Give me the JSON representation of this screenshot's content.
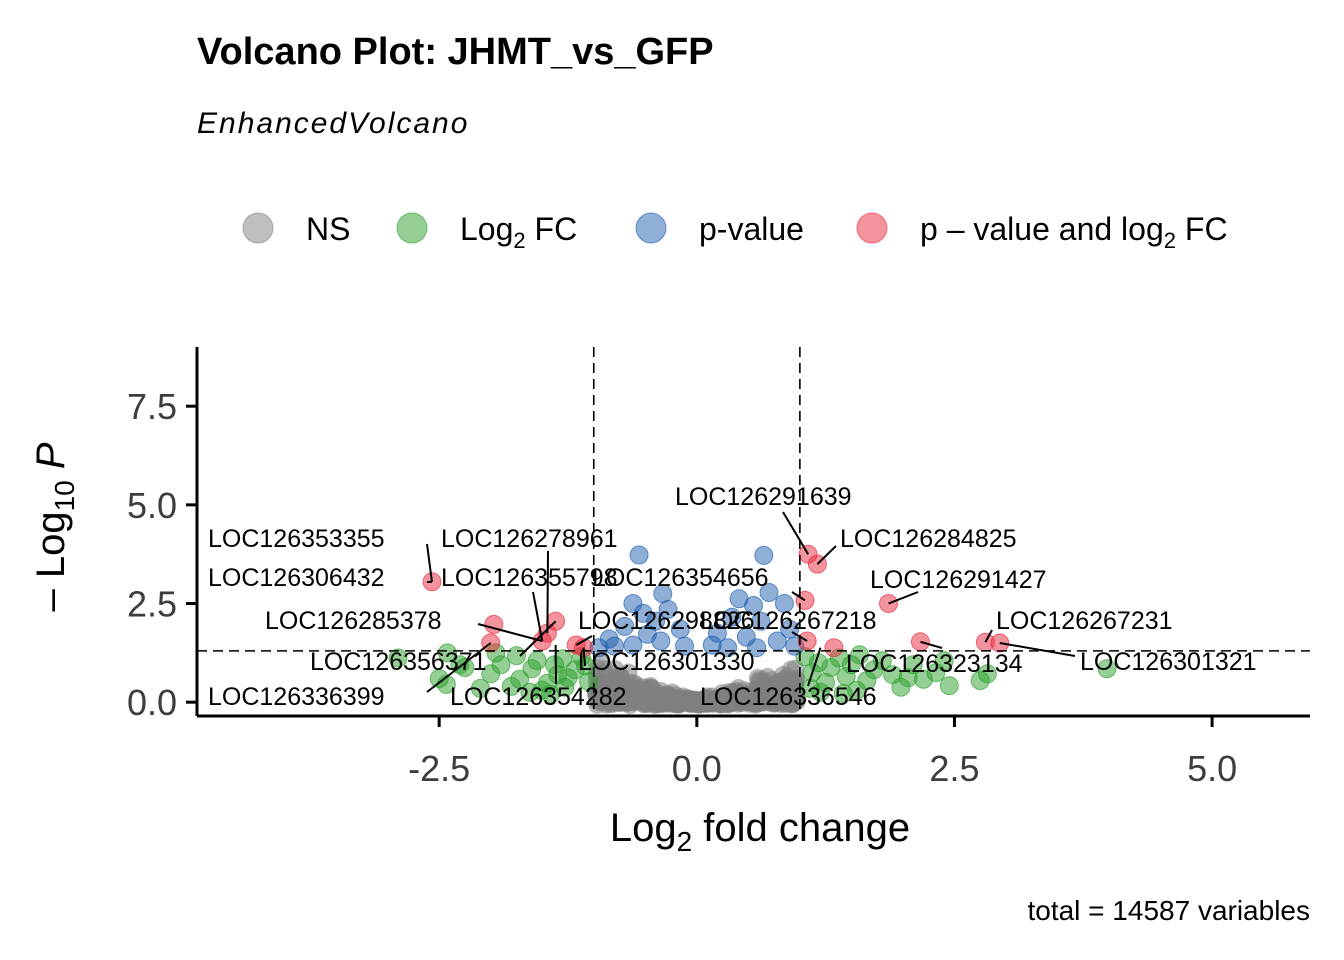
{
  "chart_data": {
    "type": "scatter",
    "title": "Volcano Plot: JHMT_vs_GFP",
    "subtitle": "EnhancedVolcano",
    "xlabel": {
      "main": "Log",
      "sub": "2",
      "rest": " fold change"
    },
    "ylabel": {
      "pre": "– Log",
      "sub": "10",
      "italic": " P"
    },
    "xlim": [
      -4.85,
      5.95
    ],
    "ylim": [
      -0.35,
      9.0
    ],
    "x_ticks": [
      -2.5,
      0.0,
      2.5,
      5.0
    ],
    "x_tick_labels": [
      "-2.5",
      "0.0",
      "2.5",
      "5.0"
    ],
    "y_ticks": [
      0.0,
      2.5,
      5.0,
      7.5
    ],
    "y_tick_labels": [
      "0.0",
      "2.5",
      "5.0",
      "7.5"
    ],
    "fc_cutoff": 1.0,
    "p_cutoff_log10": 1.3,
    "caption": "total = 14587 variables",
    "colors": {
      "NS": "#808080",
      "Log2FC": "#2ca02c",
      "pvalue": "#1f5fb0",
      "both": "#e8283c"
    },
    "legend": [
      {
        "key": "NS",
        "label": "NS",
        "sub": "",
        "tail": "",
        "color": "#808080"
      },
      {
        "key": "Log2FC",
        "label": "Log",
        "sub": "2",
        "tail": " FC",
        "color": "#2ca02c"
      },
      {
        "key": "pvalue",
        "label": "p-value",
        "sub": "",
        "tail": "",
        "color": "#1f5fb0"
      },
      {
        "key": "both",
        "label": "p – value and log",
        "sub": "2",
        "tail": " FC",
        "color": "#e8283c"
      }
    ],
    "points": {
      "both": [
        [
          -2.57,
          3.05
        ],
        [
          -1.97,
          1.97
        ],
        [
          -2.0,
          1.5
        ],
        [
          -1.5,
          1.55
        ],
        [
          -1.45,
          1.75
        ],
        [
          -1.37,
          2.05
        ],
        [
          -1.17,
          1.45
        ],
        [
          -1.1,
          1.38
        ],
        [
          1.08,
          3.75
        ],
        [
          1.17,
          3.5
        ],
        [
          1.05,
          2.58
        ],
        [
          1.07,
          1.55
        ],
        [
          1.33,
          1.38
        ],
        [
          1.86,
          2.5
        ],
        [
          2.17,
          1.53
        ],
        [
          2.8,
          1.52
        ],
        [
          2.94,
          1.5
        ]
      ],
      "pvalue": [
        [
          -0.56,
          3.73
        ],
        [
          -0.33,
          2.75
        ],
        [
          -0.52,
          2.25
        ],
        [
          -0.62,
          2.5
        ],
        [
          -0.4,
          2.05
        ],
        [
          -0.7,
          1.92
        ],
        [
          -0.85,
          1.6
        ],
        [
          -0.48,
          1.72
        ],
        [
          -0.28,
          2.35
        ],
        [
          -0.16,
          1.85
        ],
        [
          -0.62,
          1.45
        ],
        [
          -0.8,
          1.42
        ],
        [
          -0.35,
          1.55
        ],
        [
          -0.95,
          1.38
        ],
        [
          -0.12,
          1.42
        ],
        [
          0.65,
          3.72
        ],
        [
          0.41,
          2.62
        ],
        [
          0.55,
          2.45
        ],
        [
          0.7,
          2.78
        ],
        [
          0.85,
          2.5
        ],
        [
          0.34,
          2.15
        ],
        [
          0.62,
          2.05
        ],
        [
          0.9,
          1.85
        ],
        [
          0.2,
          1.75
        ],
        [
          0.48,
          1.65
        ],
        [
          0.78,
          1.55
        ],
        [
          0.15,
          1.45
        ],
        [
          0.95,
          1.42
        ],
        [
          0.3,
          1.38
        ],
        [
          0.58,
          1.38
        ]
      ],
      "Log2FC": [
        [
          -2.9,
          1.12
        ],
        [
          -2.43,
          0.45
        ],
        [
          -2.5,
          0.6
        ],
        [
          -2.42,
          1.25
        ],
        [
          -2.25,
          0.88
        ],
        [
          -2.0,
          0.72
        ],
        [
          -1.9,
          0.95
        ],
        [
          -1.75,
          1.18
        ],
        [
          -1.72,
          0.58
        ],
        [
          -1.6,
          0.85
        ],
        [
          -1.55,
          1.05
        ],
        [
          -1.45,
          0.48
        ],
        [
          -1.38,
          0.95
        ],
        [
          -1.35,
          0.7
        ],
        [
          -1.3,
          1.1
        ],
        [
          -1.25,
          0.62
        ],
        [
          -1.18,
          0.82
        ],
        [
          -1.12,
          1.15
        ],
        [
          -1.05,
          0.52
        ],
        [
          -1.5,
          0.3
        ],
        [
          -1.62,
          0.25
        ],
        [
          -1.8,
          0.4
        ],
        [
          -2.1,
          0.35
        ],
        [
          -1.95,
          1.25
        ],
        [
          -2.3,
          0.95
        ],
        [
          -1.08,
          0.92
        ],
        [
          -1.42,
          0.2
        ],
        [
          -1.28,
          0.38
        ],
        [
          1.05,
          1.15
        ],
        [
          1.12,
          0.75
        ],
        [
          1.18,
          1.0
        ],
        [
          1.25,
          0.5
        ],
        [
          1.3,
          0.88
        ],
        [
          1.38,
          1.12
        ],
        [
          1.45,
          0.65
        ],
        [
          1.5,
          0.95
        ],
        [
          1.58,
          1.2
        ],
        [
          1.65,
          0.55
        ],
        [
          1.72,
          0.82
        ],
        [
          1.8,
          1.05
        ],
        [
          1.9,
          0.7
        ],
        [
          2.05,
          0.62
        ],
        [
          2.2,
          0.58
        ],
        [
          2.32,
          0.75
        ],
        [
          2.4,
          1.05
        ],
        [
          2.45,
          0.42
        ],
        [
          2.75,
          0.55
        ],
        [
          2.82,
          0.72
        ],
        [
          3.98,
          0.85
        ],
        [
          1.55,
          0.3
        ],
        [
          1.42,
          0.22
        ],
        [
          1.98,
          0.38
        ],
        [
          2.1,
          0.95
        ],
        [
          1.1,
          0.35
        ],
        [
          1.2,
          0.25
        ]
      ]
    },
    "labels": [
      {
        "text": "LOC126353355",
        "px": -2.57,
        "py": 3.05
      },
      {
        "text": "LOC126278961",
        "px": -1.45,
        "py": 1.75
      },
      {
        "text": "LOC126306432",
        "px": -2.57,
        "py": 3.05
      },
      {
        "text": "LOC126355798",
        "px": -1.5,
        "py": 1.55
      },
      {
        "text": "LOC126354656",
        "px": 1.05,
        "py": 2.58
      },
      {
        "text": "LOC126285378",
        "px": -1.5,
        "py": 1.55
      },
      {
        "text": "LOC126298826",
        "px": -1.17,
        "py": 1.45
      },
      {
        "text": "LOC126267218",
        "px": 1.07,
        "py": 1.55
      },
      {
        "text": "LOC126356371",
        "px": -1.37,
        "py": 2.05
      },
      {
        "text": "LOC126301330",
        "px": -1.1,
        "py": 1.38
      },
      {
        "text": "LOC126336399",
        "px": -2.0,
        "py": 1.5
      },
      {
        "text": "LOC126354282",
        "px": -1.37,
        "py": 1.45
      },
      {
        "text": "LOC126336546",
        "px": 1.2,
        "py": 1.38
      },
      {
        "text": "LOC126291639",
        "px": 1.08,
        "py": 3.75
      },
      {
        "text": "LOC126284825",
        "px": 1.17,
        "py": 3.5
      },
      {
        "text": "LOC126291427",
        "px": 1.86,
        "py": 2.5
      },
      {
        "text": "LOC126267231",
        "px": 2.8,
        "py": 1.52
      },
      {
        "text": "LOC126323134",
        "px": 2.17,
        "py": 1.53
      },
      {
        "text": "LOC126301321",
        "px": 2.94,
        "py": 1.5
      }
    ]
  }
}
